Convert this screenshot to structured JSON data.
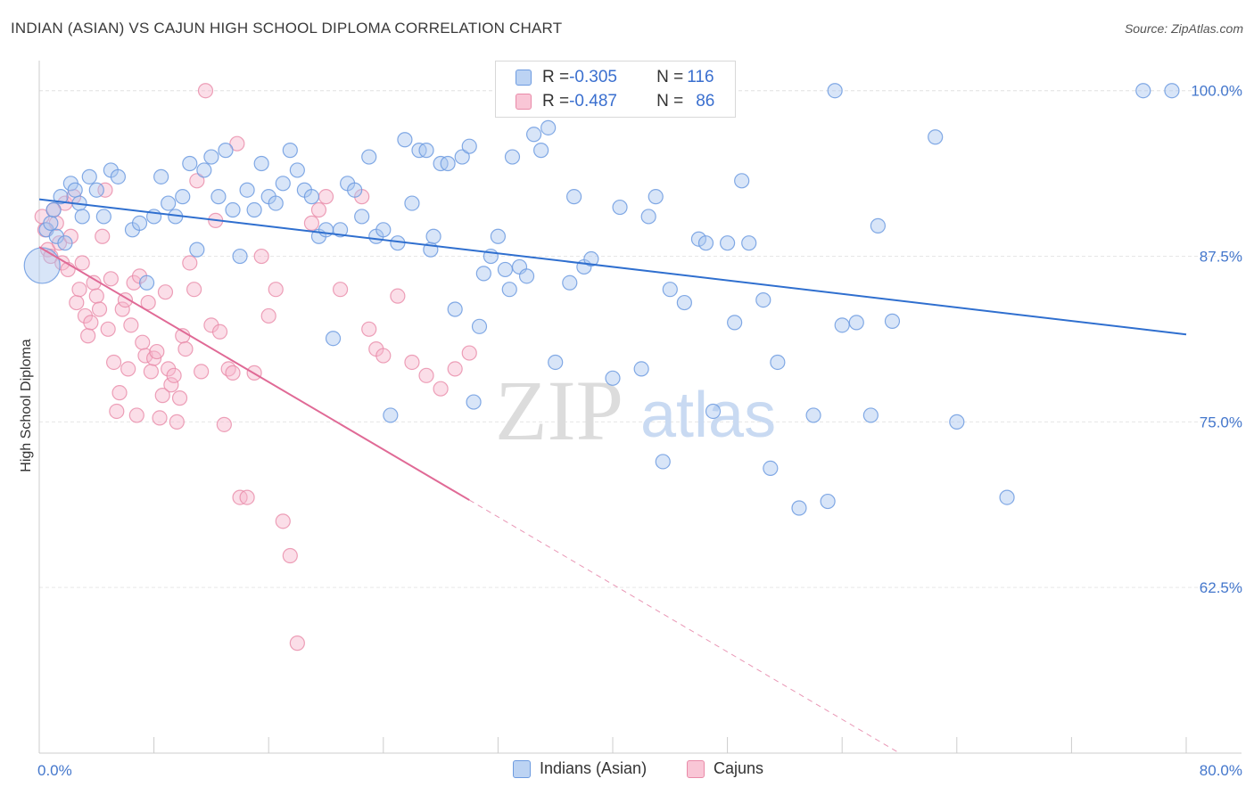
{
  "header": {
    "title": "INDIAN (ASIAN) VS CAJUN HIGH SCHOOL DIPLOMA CORRELATION CHART",
    "source": "Source: ZipAtlas.com"
  },
  "watermark": {
    "zip": "ZIP",
    "atlas": "atlas"
  },
  "legend": {
    "rows": [
      {
        "r_label": "R = ",
        "r_value": "-0.305",
        "n_label": "N = ",
        "n_value": "116"
      },
      {
        "r_label": "R = ",
        "r_value": "-0.487",
        "n_label": "N = ",
        "n_value": "86"
      }
    ]
  },
  "colors": {
    "blue_fill": "#a9c6ef",
    "blue_stroke": "#6d9be0",
    "blue_line": "#2f6fcf",
    "pink_fill": "#f6b6cb",
    "pink_stroke": "#e98aa8",
    "pink_line": "#e06a96",
    "tick_text": "#4477cc",
    "grid": "#e6e6e6"
  },
  "chart_data": {
    "type": "scatter",
    "title": "INDIAN (ASIAN) VS CAJUN HIGH SCHOOL DIPLOMA CORRELATION CHART",
    "xlabel": "",
    "ylabel": "High School Diploma",
    "xlim": [
      0,
      80
    ],
    "ylim": [
      50,
      102
    ],
    "x_tick_labels": [
      "0.0%",
      "80.0%"
    ],
    "y_ticks": [
      62.5,
      75.0,
      87.5,
      100.0
    ],
    "y_tick_labels": [
      "62.5%",
      "75.0%",
      "87.5%",
      "100.0%"
    ],
    "grid": true,
    "legend_position": "top-center",
    "series": [
      {
        "name": "Indians (Asian)",
        "r": -0.305,
        "n": 116,
        "trend": {
          "x": [
            0,
            80
          ],
          "y": [
            91.8,
            81.6
          ],
          "dashed_after": null
        },
        "points": [
          [
            0.2,
            86.8
          ],
          [
            0.5,
            89.5
          ],
          [
            0.8,
            90.0
          ],
          [
            1.0,
            91.0
          ],
          [
            1.2,
            89.0
          ],
          [
            1.5,
            92.0
          ],
          [
            1.8,
            88.5
          ],
          [
            2.2,
            93.0
          ],
          [
            2.5,
            92.5
          ],
          [
            2.8,
            91.5
          ],
          [
            3.0,
            90.5
          ],
          [
            3.5,
            93.5
          ],
          [
            4.0,
            92.5
          ],
          [
            4.5,
            90.5
          ],
          [
            5.0,
            94.0
          ],
          [
            5.5,
            93.5
          ],
          [
            6.5,
            89.5
          ],
          [
            7.0,
            90.0
          ],
          [
            7.5,
            85.5
          ],
          [
            8.0,
            90.5
          ],
          [
            8.5,
            93.5
          ],
          [
            9.0,
            91.5
          ],
          [
            9.5,
            90.5
          ],
          [
            10.0,
            92.0
          ],
          [
            10.5,
            94.5
          ],
          [
            11.0,
            88.0
          ],
          [
            11.5,
            94.0
          ],
          [
            12.0,
            95.0
          ],
          [
            12.5,
            92.0
          ],
          [
            13.0,
            95.5
          ],
          [
            13.5,
            91.0
          ],
          [
            14.0,
            87.5
          ],
          [
            14.5,
            92.5
          ],
          [
            15.0,
            91.0
          ],
          [
            15.5,
            94.5
          ],
          [
            16.0,
            92.0
          ],
          [
            16.5,
            91.5
          ],
          [
            17.0,
            93.0
          ],
          [
            17.5,
            95.5
          ],
          [
            18.0,
            94.0
          ],
          [
            18.5,
            92.5
          ],
          [
            19.0,
            92.0
          ],
          [
            19.5,
            89.0
          ],
          [
            20.0,
            89.5
          ],
          [
            20.5,
            81.3
          ],
          [
            21.0,
            89.5
          ],
          [
            21.5,
            93.0
          ],
          [
            22.0,
            92.5
          ],
          [
            22.5,
            90.5
          ],
          [
            23.0,
            95.0
          ],
          [
            23.5,
            89.0
          ],
          [
            24.0,
            89.5
          ],
          [
            24.5,
            75.5
          ],
          [
            25.0,
            88.5
          ],
          [
            25.5,
            96.3
          ],
          [
            26.0,
            91.5
          ],
          [
            26.5,
            95.5
          ],
          [
            27.0,
            95.5
          ],
          [
            27.3,
            88.0
          ],
          [
            27.5,
            89.0
          ],
          [
            28.0,
            94.5
          ],
          [
            28.5,
            94.5
          ],
          [
            29.0,
            83.5
          ],
          [
            29.5,
            95.0
          ],
          [
            30.0,
            95.8
          ],
          [
            30.3,
            76.5
          ],
          [
            30.7,
            82.2
          ],
          [
            31.0,
            86.2
          ],
          [
            31.5,
            87.5
          ],
          [
            32.0,
            89.0
          ],
          [
            32.5,
            86.5
          ],
          [
            32.8,
            85.0
          ],
          [
            33.0,
            95.0
          ],
          [
            33.5,
            86.7
          ],
          [
            34.0,
            86.0
          ],
          [
            34.5,
            96.7
          ],
          [
            35.0,
            95.5
          ],
          [
            35.5,
            97.2
          ],
          [
            36.0,
            79.5
          ],
          [
            36.5,
            100.0
          ],
          [
            37.0,
            85.5
          ],
          [
            37.3,
            92.0
          ],
          [
            38.0,
            86.7
          ],
          [
            38.5,
            87.3
          ],
          [
            40.0,
            78.3
          ],
          [
            40.5,
            91.2
          ],
          [
            42.0,
            79.0
          ],
          [
            42.5,
            90.5
          ],
          [
            43.0,
            92.0
          ],
          [
            43.5,
            72.0
          ],
          [
            44.0,
            85.0
          ],
          [
            45.0,
            84.0
          ],
          [
            46.0,
            88.8
          ],
          [
            46.5,
            88.5
          ],
          [
            47.0,
            75.8
          ],
          [
            48.0,
            88.5
          ],
          [
            48.5,
            82.5
          ],
          [
            49.0,
            93.2
          ],
          [
            49.5,
            88.5
          ],
          [
            50.5,
            84.2
          ],
          [
            51.0,
            71.5
          ],
          [
            51.5,
            79.5
          ],
          [
            53.0,
            68.5
          ],
          [
            54.0,
            75.5
          ],
          [
            55.0,
            69.0
          ],
          [
            55.5,
            100.0
          ],
          [
            56.0,
            82.3
          ],
          [
            57.0,
            82.5
          ],
          [
            58.0,
            75.5
          ],
          [
            58.5,
            89.8
          ],
          [
            59.5,
            82.6
          ],
          [
            62.5,
            96.5
          ],
          [
            64.0,
            75.0
          ],
          [
            67.5,
            69.3
          ],
          [
            77.0,
            100.0
          ],
          [
            79.0,
            100.0
          ]
        ]
      },
      {
        "name": "Cajuns",
        "r": -0.487,
        "n": 86,
        "trend": {
          "x": [
            0,
            60
          ],
          "y": [
            88.2,
            50.0
          ],
          "solid_until_x": 30
        },
        "points": [
          [
            0.2,
            90.5
          ],
          [
            0.4,
            89.5
          ],
          [
            0.6,
            88.0
          ],
          [
            0.8,
            87.5
          ],
          [
            1.0,
            91.0
          ],
          [
            1.2,
            90.0
          ],
          [
            1.4,
            88.5
          ],
          [
            1.6,
            87.0
          ],
          [
            1.8,
            91.5
          ],
          [
            2.0,
            86.5
          ],
          [
            2.2,
            89.0
          ],
          [
            2.4,
            92.0
          ],
          [
            2.6,
            84.0
          ],
          [
            2.8,
            85.0
          ],
          [
            3.0,
            87.0
          ],
          [
            3.2,
            83.0
          ],
          [
            3.4,
            81.5
          ],
          [
            3.6,
            82.5
          ],
          [
            3.8,
            85.5
          ],
          [
            4.0,
            84.5
          ],
          [
            4.2,
            83.5
          ],
          [
            4.4,
            89.0
          ],
          [
            4.6,
            92.5
          ],
          [
            4.8,
            82.0
          ],
          [
            5.0,
            85.8
          ],
          [
            5.2,
            79.5
          ],
          [
            5.4,
            75.8
          ],
          [
            5.6,
            77.2
          ],
          [
            5.8,
            83.5
          ],
          [
            6.0,
            84.2
          ],
          [
            6.2,
            79.0
          ],
          [
            6.4,
            82.3
          ],
          [
            6.6,
            85.5
          ],
          [
            6.8,
            75.5
          ],
          [
            7.0,
            86.0
          ],
          [
            7.2,
            81.0
          ],
          [
            7.4,
            80.0
          ],
          [
            7.6,
            84.0
          ],
          [
            7.8,
            78.8
          ],
          [
            8.0,
            79.8
          ],
          [
            8.2,
            80.3
          ],
          [
            8.4,
            75.3
          ],
          [
            8.6,
            77.0
          ],
          [
            8.8,
            84.8
          ],
          [
            9.0,
            79.0
          ],
          [
            9.2,
            77.8
          ],
          [
            9.4,
            78.5
          ],
          [
            9.6,
            75.0
          ],
          [
            9.8,
            76.8
          ],
          [
            10.0,
            81.5
          ],
          [
            10.2,
            80.5
          ],
          [
            10.5,
            87.0
          ],
          [
            10.8,
            85.0
          ],
          [
            11.0,
            93.2
          ],
          [
            11.3,
            78.8
          ],
          [
            11.6,
            100.0
          ],
          [
            12.0,
            82.3
          ],
          [
            12.3,
            90.2
          ],
          [
            12.6,
            81.8
          ],
          [
            12.9,
            74.8
          ],
          [
            13.2,
            79.0
          ],
          [
            13.5,
            78.7
          ],
          [
            13.8,
            96.0
          ],
          [
            14.0,
            69.3
          ],
          [
            14.5,
            69.3
          ],
          [
            15.0,
            78.7
          ],
          [
            15.5,
            87.5
          ],
          [
            16.0,
            83.0
          ],
          [
            16.5,
            85.0
          ],
          [
            17.0,
            67.5
          ],
          [
            17.5,
            64.9
          ],
          [
            18.0,
            58.3
          ],
          [
            19.0,
            90.0
          ],
          [
            19.5,
            91.0
          ],
          [
            20.0,
            92.0
          ],
          [
            21.0,
            85.0
          ],
          [
            22.5,
            92.0
          ],
          [
            23.0,
            82.0
          ],
          [
            23.5,
            80.5
          ],
          [
            24.0,
            80.0
          ],
          [
            25.0,
            84.5
          ],
          [
            26.0,
            79.5
          ],
          [
            27.0,
            78.5
          ],
          [
            28.0,
            77.5
          ],
          [
            29.0,
            79.0
          ],
          [
            30.0,
            80.2
          ]
        ]
      }
    ]
  },
  "bottom_legend": {
    "items": [
      {
        "label": "Indians (Asian)"
      },
      {
        "label": "Cajuns"
      }
    ]
  }
}
